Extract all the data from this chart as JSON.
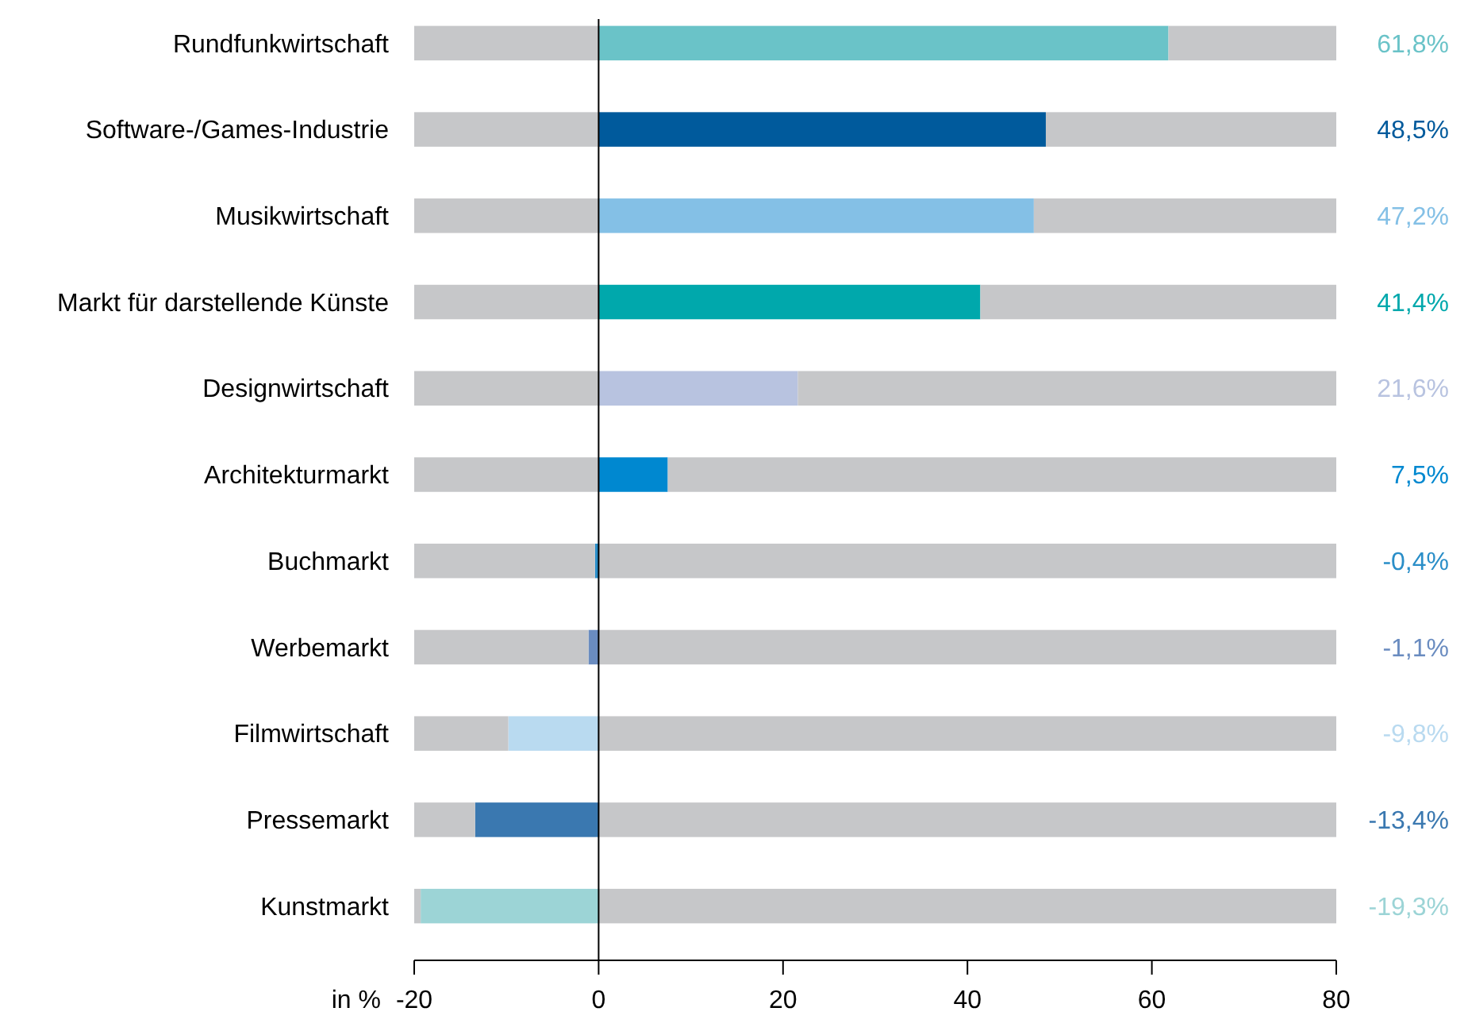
{
  "chart_data": {
    "type": "bar",
    "orientation": "horizontal",
    "stacked": true,
    "xlabel": "in %",
    "categories": [
      "Rundfunkwirtschaft",
      "Software-/Games-Industrie",
      "Musikwirtschaft",
      "Markt für darstellende Künste",
      "Designwirtschaft",
      "Architekturmarkt",
      "Buchmarkt",
      "Werbemarkt",
      "Filmwirtschaft",
      "Pressemarkt",
      "Kunstmarkt"
    ],
    "series": [
      {
        "colors": [
          "#6ac3c8",
          "#005a9c",
          "#84c0e6",
          "#00a8ac",
          "#b8c3e0",
          "#0088d0",
          "#2a8ec8",
          "#6a8cc0",
          "#b9daf0",
          "#3a78b0",
          "#9cd4d6"
        ],
        "values": [
          61.8,
          48.5,
          47.2,
          41.4,
          21.6,
          7.5,
          -0.4,
          -1.1,
          -9.8,
          -13.4,
          -19.3
        ],
        "value_labels": [
          "61,8%",
          "48,5%",
          "47,2%",
          "41,4%",
          "21,6%",
          "7,5%",
          "-0,4%",
          "-1,1%",
          "-9,8%",
          "-13,4%",
          "-19,3%"
        ]
      },
      {
        "color": "#c6c7c9",
        "values": [
          18.2,
          31.5,
          32.8,
          38.6,
          58.4,
          72.5,
          80,
          80,
          80,
          80,
          80
        ]
      },
      {
        "color": "#c6c7c9",
        "values": [
          -20,
          -20,
          -20,
          -20,
          -20,
          -20,
          -19.6,
          -18.9,
          -10.2,
          -6.6,
          -0.7
        ]
      }
    ],
    "xlim": [
      -20,
      80
    ],
    "xticks": [
      -20,
      0,
      20,
      40,
      60,
      80
    ],
    "ref_lines": [
      {
        "axis": "x",
        "value": 0,
        "color": "#000000"
      }
    ],
    "grid": false
  }
}
